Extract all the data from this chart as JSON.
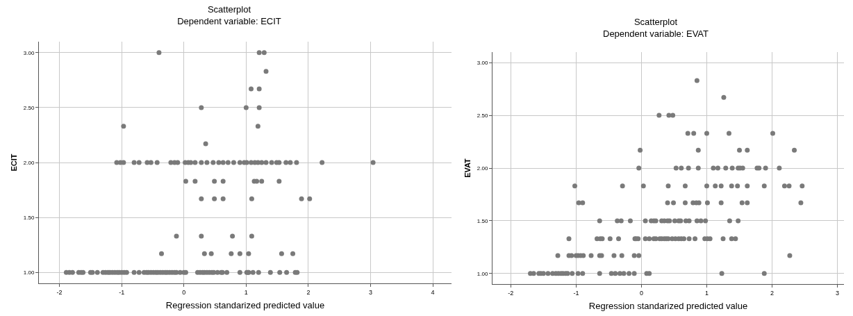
{
  "chart_data": [
    {
      "type": "scatter",
      "title": "Scatterplot",
      "subtitle": "Dependent variable: ECIT",
      "xlabel": "Regression standarized predicted value",
      "ylabel": "ECIT",
      "xlim": [
        -2.33,
        4.3
      ],
      "xticks": [
        -2,
        -1,
        0,
        1,
        2,
        3,
        4
      ],
      "ylim": [
        0.9,
        3.1
      ],
      "yticks": [
        {
          "value": 1,
          "label": "1.00"
        },
        {
          "value": 1.5,
          "label": "1.50"
        },
        {
          "value": 2,
          "label": "2.00"
        },
        {
          "value": 2.5,
          "label": "2.50"
        },
        {
          "value": 3,
          "label": "3.00"
        }
      ],
      "grid": true,
      "marker": "circle",
      "series": [
        {
          "color": "#7a7a7a",
          "x": [
            -1.89,
            -1.84,
            -1.79,
            -1.69,
            -1.65,
            -1.62,
            -1.5,
            -1.47,
            -1.39,
            -1.3,
            -1.26,
            -1.22,
            -1.19,
            -1.15,
            -1.11,
            -1.07,
            -1.04,
            -1.0,
            -0.96,
            -0.92,
            -0.8,
            -0.72,
            -0.64,
            -0.6,
            -0.57,
            -0.53,
            -0.49,
            -0.45,
            -0.42,
            -0.38,
            -0.34,
            -0.3,
            -0.27,
            -0.23,
            -0.19,
            -0.15,
            -0.12,
            -0.06,
            0.0,
            0.03,
            0.22,
            0.26,
            0.3,
            0.33,
            0.37,
            0.41,
            0.45,
            0.48,
            0.54,
            0.6,
            0.62,
            0.69,
            0.9,
            1.01,
            1.03,
            1.04,
            1.11,
            1.2,
            1.39,
            1.54,
            1.65,
            1.79,
            1.82,
            -0.36,
            0.33,
            0.44,
            0.76,
            0.9,
            1.04,
            1.57,
            1.75,
            -0.12,
            0.28,
            0.78,
            1.09,
            0.28,
            0.49,
            0.63,
            1.09,
            1.89,
            2.02,
            0.03,
            0.18,
            0.49,
            0.63,
            1.13,
            1.17,
            1.25,
            1.53,
            -1.08,
            -1.02,
            -0.97,
            -0.8,
            -0.72,
            -0.59,
            -0.53,
            -0.43,
            -0.21,
            -0.15,
            -0.1,
            0.02,
            0.07,
            0.11,
            0.18,
            0.28,
            0.37,
            0.47,
            0.56,
            0.63,
            0.71,
            0.8,
            0.9,
            0.97,
            1.01,
            1.08,
            1.14,
            1.19,
            1.25,
            1.32,
            1.41,
            1.49,
            1.53,
            1.64,
            1.71,
            1.81,
            2.22,
            3.04,
            0.35,
            -0.97,
            1.19,
            0.28,
            1.0,
            1.21,
            1.08,
            1.21,
            1.32,
            -0.4,
            1.21,
            1.29
          ],
          "values": [
            1,
            1,
            1,
            1,
            1,
            1,
            1,
            1,
            1,
            1,
            1,
            1,
            1,
            1,
            1,
            1,
            1,
            1,
            1,
            1,
            1,
            1,
            1,
            1,
            1,
            1,
            1,
            1,
            1,
            1,
            1,
            1,
            1,
            1,
            1,
            1,
            1,
            1,
            1,
            1,
            1,
            1,
            1,
            1,
            1,
            1,
            1,
            1,
            1,
            1,
            1,
            1,
            1,
            1,
            1,
            1,
            1,
            1,
            1,
            1,
            1,
            1,
            1,
            1.17,
            1.17,
            1.17,
            1.17,
            1.17,
            1.17,
            1.17,
            1.17,
            1.33,
            1.33,
            1.33,
            1.33,
            1.67,
            1.67,
            1.67,
            1.67,
            1.67,
            1.67,
            1.83,
            1.83,
            1.83,
            1.83,
            1.83,
            1.83,
            1.83,
            1.83,
            2,
            2,
            2,
            2,
            2,
            2,
            2,
            2,
            2,
            2,
            2,
            2,
            2,
            2,
            2,
            2,
            2,
            2,
            2,
            2,
            2,
            2,
            2,
            2,
            2,
            2,
            2,
            2,
            2,
            2,
            2,
            2,
            2,
            2,
            2,
            2,
            2,
            2,
            2.17,
            2.33,
            2.33,
            2.5,
            2.5,
            2.5,
            2.67,
            2.67,
            2.83,
            3,
            3,
            3
          ]
        }
      ]
    },
    {
      "type": "scatter",
      "title": "Scatterplot",
      "subtitle": "Dependent variable: EVAT",
      "xlabel": "Regression standarized predicted value",
      "ylabel": "EVAT",
      "xlim": [
        -2.28,
        3.1
      ],
      "xticks": [
        -2,
        -1,
        0,
        1,
        2,
        3
      ],
      "ylim": [
        0.9,
        3.1
      ],
      "yticks": [
        {
          "value": 1,
          "label": "1.00"
        },
        {
          "value": 1.5,
          "label": "1.50"
        },
        {
          "value": 2,
          "label": "2.00"
        },
        {
          "value": 2.5,
          "label": "2.50"
        },
        {
          "value": 3,
          "label": "3.00"
        }
      ],
      "grid": true,
      "marker": "circle",
      "series": [
        {
          "color": "#7a7a7a",
          "x": [
            -1.7,
            -1.65,
            -1.57,
            -1.54,
            -1.5,
            -1.43,
            -1.36,
            -1.31,
            -1.27,
            -1.23,
            -1.2,
            -1.16,
            -1.13,
            -1.06,
            -0.97,
            -0.9,
            -0.64,
            -0.46,
            -0.4,
            -0.33,
            -0.27,
            -0.19,
            -0.11,
            0.08,
            0.12,
            1.23,
            1.88,
            -1.28,
            -1.11,
            -1.07,
            -1.0,
            -0.97,
            -0.93,
            -0.89,
            -0.77,
            -0.64,
            -0.61,
            -0.42,
            -0.3,
            -0.11,
            -0.04,
            2.27,
            -1.11,
            -0.68,
            -0.63,
            -0.6,
            -0.48,
            -0.35,
            -0.1,
            -0.08,
            -0.05,
            0.06,
            0.12,
            0.19,
            0.22,
            0.28,
            0.31,
            0.35,
            0.38,
            0.41,
            0.47,
            0.52,
            0.57,
            0.61,
            0.65,
            0.73,
            0.82,
            0.97,
            1.01,
            1.05,
            1.25,
            1.38,
            1.44,
            -0.64,
            -0.37,
            -0.31,
            -0.17,
            0.06,
            0.15,
            0.19,
            0.22,
            0.31,
            0.35,
            0.4,
            0.43,
            0.51,
            0.57,
            0.6,
            0.68,
            0.73,
            0.85,
            0.91,
            0.98,
            1.35,
            1.48,
            -0.96,
            -0.9,
            0.4,
            0.49,
            0.67,
            0.79,
            0.84,
            0.88,
            1.01,
            1.22,
            1.54,
            1.62,
            2.44,
            -1.02,
            -0.29,
            0.03,
            0.41,
            0.67,
            1.0,
            1.13,
            1.22,
            1.38,
            1.47,
            1.62,
            1.88,
            2.19,
            2.26,
            2.46,
            -0.04,
            0.53,
            0.61,
            0.72,
            0.87,
            1.1,
            1.17,
            1.29,
            1.39,
            1.48,
            1.51,
            1.55,
            1.77,
            1.8,
            1.9,
            2.11,
            -0.02,
            0.87,
            1.5,
            1.62,
            2.34,
            0.71,
            0.8,
            1.0,
            1.34,
            2.01,
            0.27,
            0.42,
            0.48,
            1.26,
            0.85
          ],
          "values": [
            1,
            1,
            1,
            1,
            1,
            1,
            1,
            1,
            1,
            1,
            1,
            1,
            1,
            1,
            1,
            1,
            1,
            1,
            1,
            1,
            1,
            1,
            1,
            1,
            1,
            1,
            1,
            1.17,
            1.17,
            1.17,
            1.17,
            1.17,
            1.17,
            1.17,
            1.17,
            1.17,
            1.17,
            1.17,
            1.17,
            1.17,
            1.17,
            1.17,
            1.33,
            1.33,
            1.33,
            1.33,
            1.33,
            1.33,
            1.33,
            1.33,
            1.33,
            1.33,
            1.33,
            1.33,
            1.33,
            1.33,
            1.33,
            1.33,
            1.33,
            1.33,
            1.33,
            1.33,
            1.33,
            1.33,
            1.33,
            1.33,
            1.33,
            1.33,
            1.33,
            1.33,
            1.33,
            1.33,
            1.33,
            1.5,
            1.5,
            1.5,
            1.5,
            1.5,
            1.5,
            1.5,
            1.5,
            1.5,
            1.5,
            1.5,
            1.5,
            1.5,
            1.5,
            1.5,
            1.5,
            1.5,
            1.5,
            1.5,
            1.5,
            1.5,
            1.5,
            1.67,
            1.67,
            1.67,
            1.67,
            1.67,
            1.67,
            1.67,
            1.67,
            1.67,
            1.67,
            1.67,
            1.67,
            1.67,
            1.83,
            1.83,
            1.83,
            1.83,
            1.83,
            1.83,
            1.83,
            1.83,
            1.83,
            1.83,
            1.83,
            1.83,
            1.83,
            1.83,
            1.83,
            2,
            2,
            2,
            2,
            2,
            2,
            2,
            2,
            2,
            2,
            2,
            2,
            2,
            2,
            2,
            2,
            2.17,
            2.17,
            2.17,
            2.17,
            2.17,
            2.33,
            2.33,
            2.33,
            2.33,
            2.33,
            2.5,
            2.5,
            2.5,
            2.67,
            2.83
          ]
        }
      ]
    }
  ]
}
